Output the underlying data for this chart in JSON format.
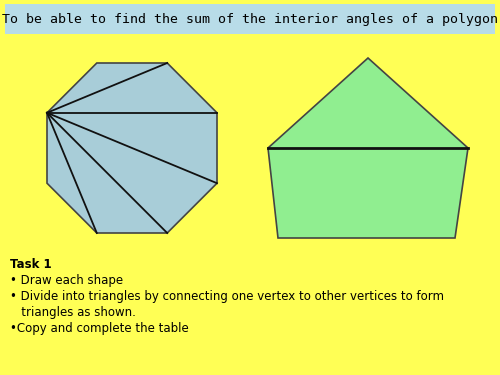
{
  "background_color": "#FFFF55",
  "header_bg_color": "#B8DCE8",
  "header_text": "To be able to find the sum of the interior angles of a polygon",
  "header_fontsize": 9.5,
  "octagon_color": "#A8CDD8",
  "pentagon_color": "#90EE90",
  "edge_color": "#444444",
  "line_color": "#111111",
  "task_lines": [
    "Task 1",
    "• Draw each shape",
    "• Divide into triangles by connecting one vertex to other vertices to form",
    "   triangles as shown.",
    "•Copy and complete the table"
  ],
  "task_fontsize": 8.5,
  "task_bold_idx": 0
}
